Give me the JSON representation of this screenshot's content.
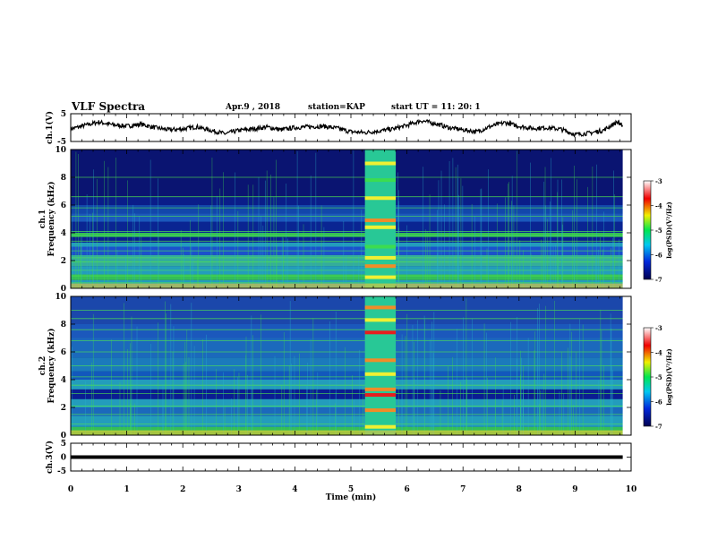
{
  "header": {
    "title": "VLF Spectra",
    "date": "Apr.9 , 2018",
    "station": "station=KAP",
    "start": "start UT =  11: 20: 1"
  },
  "chart_data": [
    {
      "type": "line",
      "ylabel": "ch.1(V)",
      "ylim": [
        -5,
        5
      ],
      "yticks": [
        "5",
        "-5"
      ],
      "x": [
        0.0,
        0.25,
        0.5,
        0.75,
        1.0,
        1.25,
        1.5,
        1.75,
        2.0,
        2.25,
        2.5,
        2.75,
        3.0,
        3.25,
        3.5,
        3.75,
        4.0,
        4.25,
        4.5,
        4.75,
        5.0,
        5.25,
        5.5,
        5.75,
        6.0,
        6.25,
        6.5,
        6.75,
        7.0,
        7.25,
        7.5,
        7.75,
        8.0,
        8.25,
        8.5,
        8.75,
        9.0,
        9.25,
        9.5,
        9.75,
        9.85
      ],
      "y": [
        -0.5,
        0.8,
        2.0,
        1.0,
        0.5,
        1.2,
        0.0,
        -0.8,
        -0.5,
        0.3,
        -1.0,
        -2.2,
        -1.0,
        -0.5,
        0.2,
        -0.8,
        0.0,
        0.3,
        0.5,
        -0.2,
        -1.5,
        -1.8,
        -1.2,
        -0.5,
        0.8,
        2.5,
        1.5,
        0.0,
        -0.8,
        -1.5,
        0.5,
        1.8,
        0.5,
        -0.3,
        0.0,
        -0.6,
        -2.5,
        -2.0,
        -1.0,
        2.0,
        1.0
      ]
    },
    {
      "type": "heatmap",
      "ylabel": "ch.1\nFrequency (kHz)",
      "ylim": [
        0,
        10
      ],
      "yticks": [
        "0",
        "2",
        "4",
        "6",
        "8",
        "10"
      ],
      "colorbar": {
        "label": "log(PSD)(V²/Hz)",
        "range": [
          -7,
          -3
        ],
        "ticks": [
          "-3",
          "-4",
          "-5",
          "-6",
          "-7"
        ]
      }
    },
    {
      "type": "heatmap",
      "ylabel": "ch.2\nFrequency (kHz)",
      "ylim": [
        0,
        10
      ],
      "yticks": [
        "0",
        "2",
        "4",
        "6",
        "8",
        "10"
      ],
      "colorbar": {
        "label": "log(PSD)(V²/Hz)",
        "range": [
          -7,
          -3
        ],
        "ticks": [
          "-3",
          "-4",
          "-5",
          "-6",
          "-7"
        ]
      }
    },
    {
      "type": "line",
      "ylabel": "ch.3(V)",
      "ylim": [
        -5,
        5
      ],
      "yticks": [
        "5",
        "0",
        "-5"
      ],
      "x": [
        0,
        9.85
      ],
      "y": [
        0,
        0
      ]
    }
  ],
  "xaxis": {
    "label": "Time (min)",
    "xlim": [
      0,
      10
    ],
    "ticks": [
      "0",
      "1",
      "2",
      "3",
      "4",
      "5",
      "6",
      "7",
      "8",
      "9",
      "10"
    ]
  },
  "colors": {
    "background_dark": "#00003c",
    "deep_blue": "#0a1e96",
    "cyan": "#28b4c8",
    "green": "#3cdc50",
    "yellow": "#f0f032",
    "orange": "#f08c28",
    "red": "#e61e1e"
  }
}
